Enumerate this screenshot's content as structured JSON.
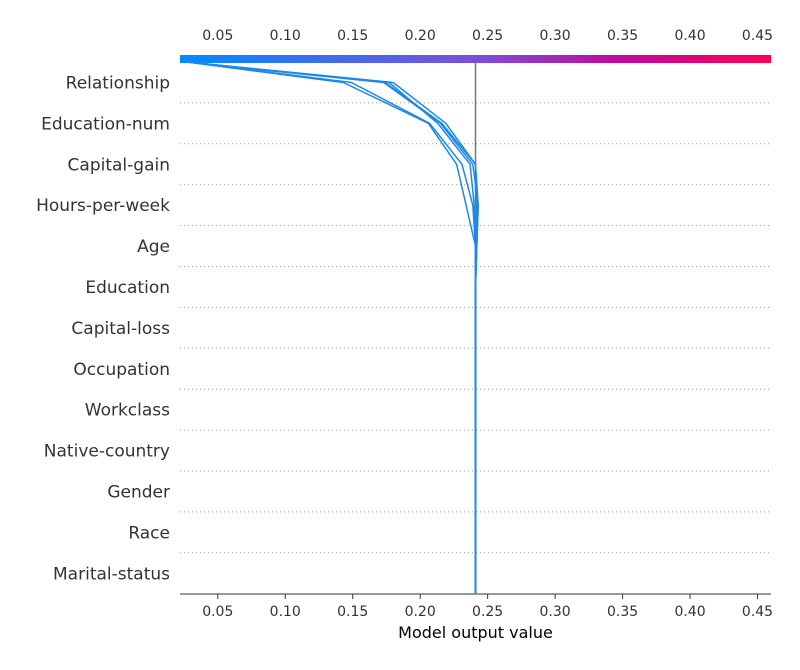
{
  "chart_data": {
    "type": "line",
    "xlabel": "Model output value",
    "xlim": [
      0.022,
      0.46
    ],
    "x_ticks": [
      "0.05",
      "0.10",
      "0.15",
      "0.20",
      "0.25",
      "0.30",
      "0.35",
      "0.40",
      "0.45"
    ],
    "x_tick_values": [
      0.05,
      0.1,
      0.15,
      0.2,
      0.25,
      0.3,
      0.35,
      0.4,
      0.45
    ],
    "features": [
      "Relationship",
      "Education-num",
      "Capital-gain",
      "Hours-per-week",
      "Age",
      "Education",
      "Capital-loss",
      "Occupation",
      "Workclass",
      "Native-country",
      "Gender",
      "Race",
      "Marital-status"
    ],
    "base_value": 0.241,
    "colormap": [
      "#008bfb",
      "#ff0052"
    ],
    "line_color": "#1e88e5",
    "grid": "dotted horizontal",
    "series": [
      {
        "values": [
          0.027,
          0.174,
          0.216,
          0.241,
          0.242,
          0.242,
          0.241,
          0.241,
          0.241,
          0.241,
          0.241,
          0.241,
          0.241,
          0.241
        ]
      },
      {
        "values": [
          0.027,
          0.18,
          0.219,
          0.241,
          0.243,
          0.242,
          0.241,
          0.241,
          0.241,
          0.241,
          0.241,
          0.241,
          0.241,
          0.241
        ]
      },
      {
        "values": [
          0.027,
          0.173,
          0.215,
          0.239,
          0.243,
          0.242,
          0.241,
          0.241,
          0.241,
          0.241,
          0.241,
          0.241,
          0.241,
          0.241
        ]
      },
      {
        "values": [
          0.027,
          0.177,
          0.213,
          0.237,
          0.24,
          0.241,
          0.241,
          0.241,
          0.241,
          0.241,
          0.241,
          0.241,
          0.241,
          0.241
        ]
      },
      {
        "values": [
          0.027,
          0.149,
          0.207,
          0.231,
          0.239,
          0.241,
          0.241,
          0.241,
          0.241,
          0.241,
          0.241,
          0.241,
          0.241,
          0.241
        ]
      },
      {
        "values": [
          0.027,
          0.143,
          0.206,
          0.227,
          0.234,
          0.241,
          0.241,
          0.241,
          0.241,
          0.241,
          0.241,
          0.241,
          0.241,
          0.241
        ]
      }
    ]
  }
}
